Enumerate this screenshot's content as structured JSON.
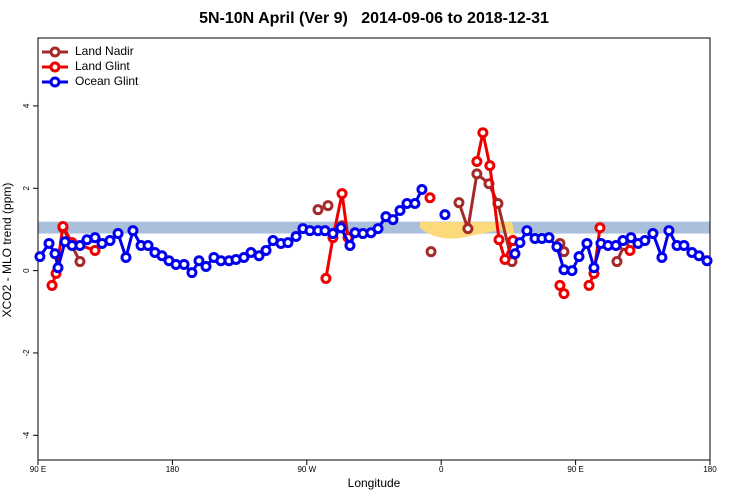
{
  "chart_data": {
    "type": "line",
    "title": "5N-10N April (Ver 9)   2014-09-06 to 2018-12-31",
    "x_label": "Longitude",
    "y_label": "XCO2 - MLO trend (ppm)",
    "xlim": [
      90,
      540
    ],
    "xticks": [
      {
        "value": 90,
        "label": "90 E"
      },
      {
        "value": 180,
        "label": "180"
      },
      {
        "value": 270,
        "label": "90 W"
      },
      {
        "value": 360,
        "label": "0"
      },
      {
        "value": 450,
        "label": "90 E"
      },
      {
        "value": 540,
        "label": "180"
      }
    ],
    "ylim": [
      -4.6,
      5.65
    ],
    "yticks": [
      -4,
      -2,
      0,
      2,
      4
    ],
    "band": [
      0.9,
      1.19
    ],
    "band_color": "#a9bfdc",
    "legend": "top-left",
    "series": [
      {
        "name": "Land Nadir",
        "color": "#a52a2a",
        "x": [
          106.7,
          118.1,
          null,
          277.5,
          284.2,
          null,
          293.6,
          null,
          353.2,
          null,
          371.9,
          377.9,
          383.9,
          392.0,
          398.0,
          407.4,
          null,
          439.5,
          442.2,
          null,
          477.7,
          482.4
        ],
        "values": [
          1.04,
          0.22,
          null,
          1.48,
          1.58,
          null,
          1.09,
          null,
          0.46,
          null,
          1.65,
          1.02,
          2.35,
          2.11,
          1.63,
          0.22,
          null,
          0.66,
          0.46,
          null,
          0.22,
          0.61
        ]
      },
      {
        "name": "Land Glint",
        "color": "#ee0000",
        "x": [
          99.4,
          102.1,
          106.7,
          112.8,
          128.2,
          null,
          282.8,
          287.5,
          293.6,
          297.6,
          null,
          352.5,
          null,
          383.9,
          387.9,
          392.6,
          398.7,
          402.7,
          408.0,
          null,
          439.5,
          442.2,
          null,
          459.0,
          462.3,
          466.3,
          null,
          486.4
        ],
        "values": [
          -0.36,
          -0.07,
          1.07,
          0.68,
          0.49,
          null,
          -0.19,
          0.8,
          1.87,
          0.8,
          null,
          1.77,
          null,
          2.65,
          3.35,
          2.55,
          0.75,
          0.27,
          0.73,
          null,
          -0.36,
          -0.56,
          null,
          -0.36,
          -0.07,
          1.04,
          null,
          0.49
        ]
      },
      {
        "name": "Ocean Glint",
        "color": "#0000ee",
        "x": [
          91.3,
          97.4,
          101.4,
          103.4,
          108.1,
          112.8,
          118.1,
          122.8,
          128.2,
          132.9,
          138.2,
          143.6,
          148.9,
          153.6,
          159.0,
          163.7,
          168.3,
          173.0,
          177.7,
          182.4,
          187.8,
          193.1,
          197.8,
          202.5,
          207.8,
          212.5,
          217.9,
          222.6,
          227.9,
          232.6,
          238.0,
          242.7,
          247.4,
          252.7,
          257.4,
          262.8,
          267.4,
          272.1,
          277.5,
          282.2,
          287.5,
          292.9,
          298.9,
          302.3,
          307.6,
          313.0,
          317.7,
          323.0,
          327.7,
          332.4,
          337.1,
          342.4,
          347.1,
          null,
          362.5,
          null,
          409.4,
          412.7,
          417.4,
          422.8,
          427.5,
          432.2,
          437.5,
          442.2,
          447.6,
          452.3,
          457.6,
          462.3,
          467.0,
          471.7,
          477.0,
          481.7,
          487.1,
          491.8,
          496.4,
          501.8,
          507.8,
          512.5,
          517.9,
          522.6,
          527.9,
          532.6,
          538.0
        ],
        "values": [
          0.34,
          0.66,
          0.41,
          0.07,
          0.7,
          0.61,
          0.61,
          0.75,
          0.8,
          0.66,
          0.73,
          0.9,
          0.32,
          0.97,
          0.61,
          0.61,
          0.44,
          0.36,
          0.24,
          0.15,
          0.15,
          -0.05,
          0.24,
          0.1,
          0.32,
          0.24,
          0.24,
          0.27,
          0.32,
          0.44,
          0.36,
          0.49,
          0.73,
          0.66,
          0.68,
          0.83,
          1.02,
          0.97,
          0.97,
          0.97,
          0.9,
          1.04,
          0.61,
          0.92,
          0.9,
          0.92,
          1.02,
          1.31,
          1.24,
          1.46,
          1.63,
          1.63,
          1.97,
          null,
          1.36,
          null,
          0.41,
          0.68,
          0.97,
          0.78,
          0.78,
          0.8,
          0.58,
          0.02,
          0.0,
          0.34,
          0.66,
          0.07,
          0.66,
          0.61,
          0.61,
          0.73,
          0.8,
          0.66,
          0.73,
          0.9,
          0.32,
          0.97,
          0.61,
          0.61,
          0.44,
          0.36,
          0.24
        ]
      }
    ]
  }
}
